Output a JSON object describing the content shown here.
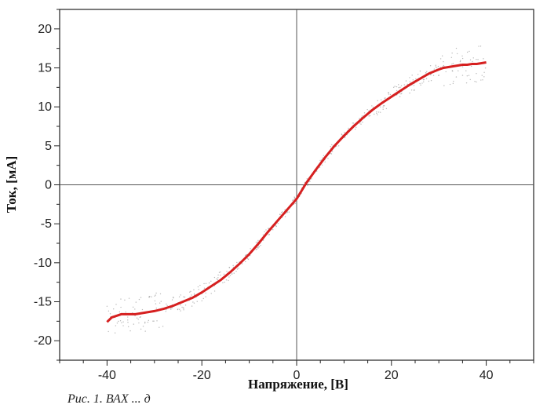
{
  "chart_data": {
    "type": "scatter",
    "xlabel": "Напряжение, [В]",
    "ylabel": "Ток, [мА]",
    "xlim": [
      -50,
      50
    ],
    "ylim": [
      -22.5,
      22.5
    ],
    "x_ticks": [
      -40,
      -20,
      0,
      20,
      40
    ],
    "y_ticks": [
      20,
      15,
      10,
      5,
      0,
      -5,
      -10,
      -15,
      -20
    ],
    "grid": false,
    "reference_lines": {
      "x": 0,
      "y": 0
    },
    "series": [
      {
        "kind": "scatter",
        "color": "#8c8c8c",
        "x": [
          -40,
          -39,
          -38,
          -37,
          -36,
          -35,
          -34,
          -33,
          -32,
          -31,
          -30,
          -28,
          -26,
          -24,
          -22,
          -20,
          -18,
          -16,
          -14,
          -12,
          -10,
          -8,
          -6,
          -4,
          -2,
          0,
          2,
          4,
          6,
          8,
          10,
          12,
          14,
          16,
          18,
          20,
          22,
          24,
          26,
          28,
          30,
          31,
          32,
          33,
          34,
          35,
          36,
          37,
          38,
          39,
          40
        ],
        "y": [
          -17.6,
          -17.0,
          -16.8,
          -16.6,
          -16.6,
          -16.6,
          -16.6,
          -16.5,
          -16.4,
          -16.3,
          -16.2,
          -15.9,
          -15.5,
          -15.0,
          -14.5,
          -13.8,
          -13.0,
          -12.2,
          -11.2,
          -10.1,
          -8.9,
          -7.5,
          -6.0,
          -4.6,
          -3.2,
          -1.8,
          0.2,
          1.9,
          3.5,
          5.0,
          6.3,
          7.5,
          8.6,
          9.6,
          10.5,
          11.3,
          12.1,
          12.9,
          13.6,
          14.3,
          14.8,
          15.0,
          15.1,
          15.2,
          15.3,
          15.4,
          15.4,
          15.5,
          15.5,
          15.6,
          15.7
        ]
      },
      {
        "kind": "line",
        "color": "#d62020",
        "x": [
          -40,
          -39,
          -38,
          -37,
          -36,
          -35,
          -34,
          -33,
          -32,
          -31,
          -30,
          -28,
          -26,
          -24,
          -22,
          -20,
          -18,
          -16,
          -14,
          -12,
          -10,
          -8,
          -6,
          -4,
          -2,
          0,
          2,
          4,
          6,
          8,
          10,
          12,
          14,
          16,
          18,
          20,
          22,
          24,
          26,
          28,
          30,
          31,
          32,
          33,
          34,
          35,
          36,
          37,
          38,
          39,
          40
        ],
        "y": [
          -17.6,
          -17.0,
          -16.8,
          -16.6,
          -16.6,
          -16.6,
          -16.6,
          -16.5,
          -16.4,
          -16.3,
          -16.2,
          -15.9,
          -15.5,
          -15.0,
          -14.5,
          -13.8,
          -13.0,
          -12.2,
          -11.2,
          -10.1,
          -8.9,
          -7.5,
          -6.0,
          -4.6,
          -3.2,
          -1.8,
          0.2,
          1.9,
          3.5,
          5.0,
          6.3,
          7.5,
          8.6,
          9.6,
          10.5,
          11.3,
          12.1,
          12.9,
          13.6,
          14.3,
          14.8,
          15.0,
          15.1,
          15.2,
          15.3,
          15.4,
          15.4,
          15.5,
          15.5,
          15.6,
          15.7
        ]
      }
    ]
  },
  "caption": "Рис. 1. ВАХ ... д"
}
